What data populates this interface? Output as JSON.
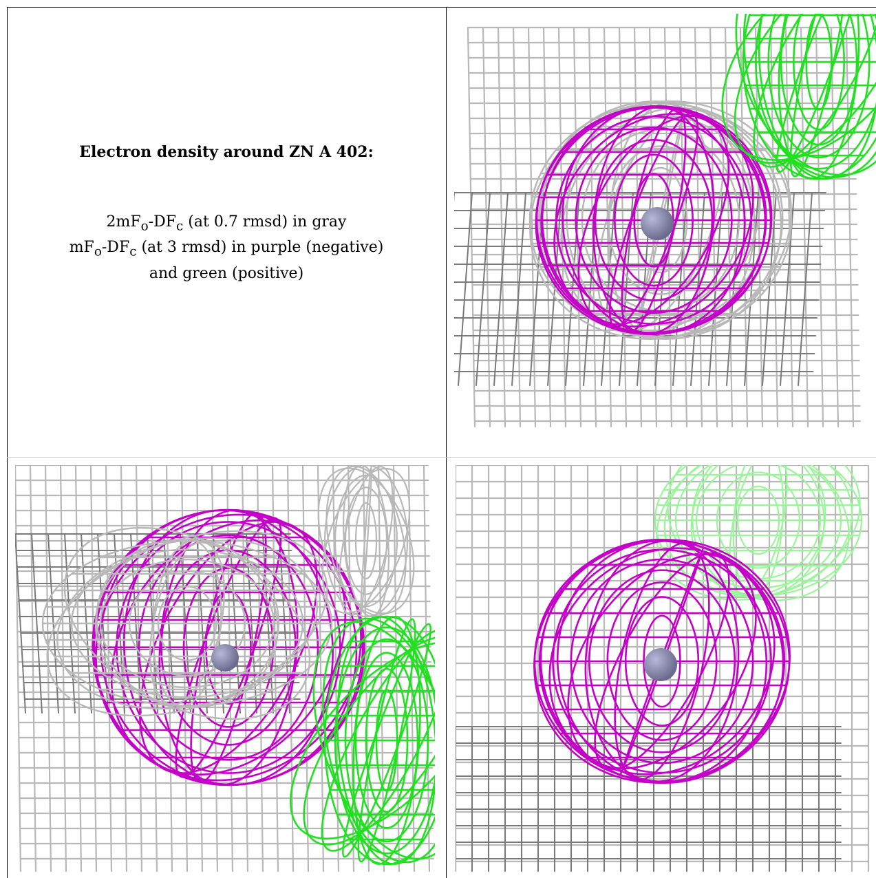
{
  "caption": {
    "title": "Electron density around ZN A 402:",
    "line1": "2mFo-DFc (at 0.7 rmsd) in gray",
    "line2": "mFo-DFc (at 3 rmsd) in purple (negative)",
    "line3": "and green (positive)"
  },
  "colors": {
    "gray_mesh": "#b8b8b8",
    "gray_mesh_dark": "#7a7a7a",
    "negative_mesh": "#c400c8",
    "positive_mesh": "#20e020",
    "zinc_atom": "#6a6a8e"
  },
  "panels": [
    {
      "name": "view-1",
      "icon": "density-mesh-view"
    },
    {
      "name": "view-2",
      "icon": "density-mesh-view"
    },
    {
      "name": "view-3",
      "icon": "density-mesh-view"
    }
  ]
}
